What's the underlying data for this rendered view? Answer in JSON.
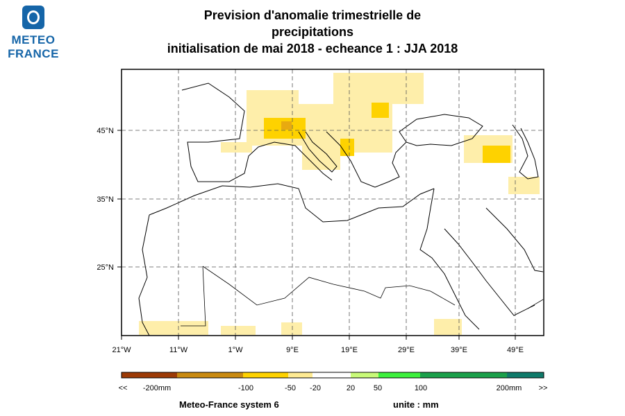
{
  "logo": {
    "line1": "METEO",
    "line2": "FRANCE"
  },
  "title": {
    "line1": "Prevision d'anomalie trimestrielle de",
    "line2": "precipitations",
    "line3": "initialisation de mai 2018  -  echeance 1 : JJA 2018"
  },
  "map": {
    "lon_ticks": [
      "21°W",
      "11°W",
      "1°W",
      "9°E",
      "19°E",
      "29°E",
      "39°E",
      "49°E"
    ],
    "lat_ticks": [
      "45°N",
      "35°N",
      "25°N"
    ],
    "grid": "dashed"
  },
  "legend": {
    "labels": [
      "<<",
      "-200mm",
      "-100",
      "-50",
      "-20",
      "20",
      "50",
      "100",
      "200mm",
      ">>"
    ],
    "colors": [
      "#9c3a06",
      "#c98a10",
      "#e0a81a",
      "#fed200",
      "#feea92",
      "#ffffff",
      "#c8fa78",
      "#3cf03c",
      "#1aa04a",
      "#0f7a6a"
    ]
  },
  "footer": {
    "system": "Meteo-France system 6",
    "unit": "unite : mm"
  },
  "palette": {
    "anom_light": "#feeeaa",
    "anom_mid": "#fed200",
    "anom_strong": "#e8aa10",
    "coast": "#000000"
  }
}
